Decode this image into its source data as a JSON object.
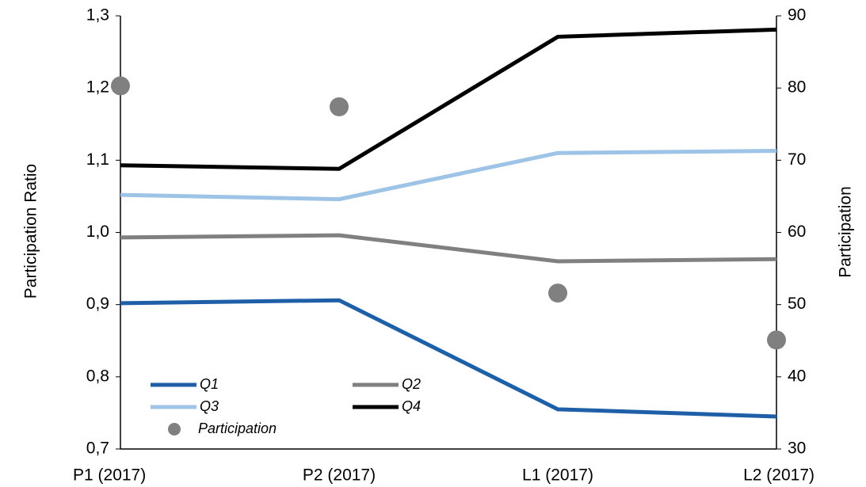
{
  "chart_data": {
    "type": "line",
    "categories": [
      "P1 (2017)",
      "P2 (2017)",
      "L1 (2017)",
      "L2 (2017)"
    ],
    "y_label": "Participation Ratio",
    "y2_label": "Participation",
    "ylim": [
      0.7,
      1.3
    ],
    "yticks": [
      {
        "value": 0.7,
        "label": "0,7"
      },
      {
        "value": 0.8,
        "label": "0,8"
      },
      {
        "value": 0.9,
        "label": "0,9"
      },
      {
        "value": 1.0,
        "label": "1,0"
      },
      {
        "value": 1.1,
        "label": "1,1"
      },
      {
        "value": 1.2,
        "label": "1,2"
      },
      {
        "value": 1.3,
        "label": "1,3"
      }
    ],
    "y2lim": [
      30,
      90
    ],
    "y2ticks": [
      30,
      40,
      50,
      60,
      70,
      80,
      90
    ],
    "series": [
      {
        "name": "Q1",
        "color": "#1f5fa8",
        "values": [
          0.902,
          0.906,
          0.755,
          0.745
        ]
      },
      {
        "name": "Q2",
        "color": "#808080",
        "values": [
          0.993,
          0.996,
          0.96,
          0.963
        ]
      },
      {
        "name": "Q3",
        "color": "#9dc3e6",
        "values": [
          1.052,
          1.046,
          1.11,
          1.113
        ]
      },
      {
        "name": "Q4",
        "color": "#000000",
        "values": [
          1.093,
          1.088,
          1.271,
          1.281
        ]
      },
      {
        "name": "Participation",
        "color": "#808080",
        "type": "scatter",
        "axis": "y2",
        "values": [
          80.3,
          77.4,
          51.6,
          45.1
        ]
      }
    ]
  }
}
